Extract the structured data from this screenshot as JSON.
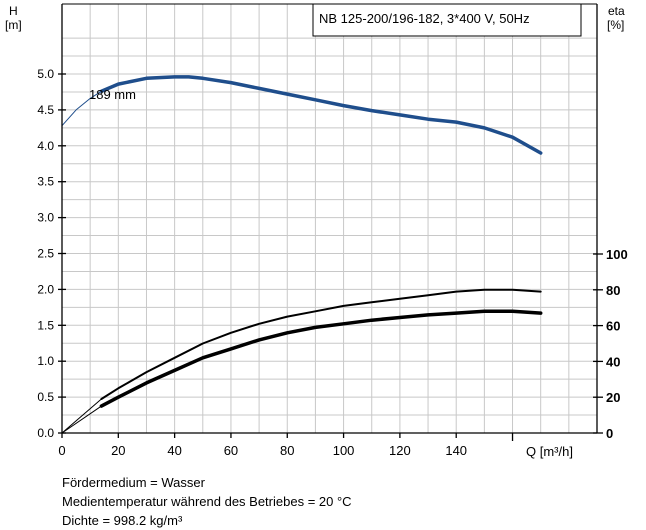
{
  "chart_data": {
    "type": "line",
    "title": "NB 125-200/196-182, 3*400 V, 50Hz",
    "xlabel": "Q [m³/h]",
    "x_ticks": [
      "0",
      "20",
      "40",
      "60",
      "80",
      "100",
      "120",
      "140"
    ],
    "xlim": [
      0,
      190
    ],
    "ylabel_left": [
      "H",
      "[m]"
    ],
    "ylim_left": [
      0,
      5.5
    ],
    "y_ticks_left": [
      "0.0",
      "0.5",
      "1.0",
      "1.5",
      "2.0",
      "2.5",
      "3.0",
      "3.5",
      "4.0",
      "4.5",
      "5.0"
    ],
    "ylabel_right": [
      "eta",
      "[%]"
    ],
    "ylim_right": [
      0,
      100
    ],
    "y_ticks_right": [
      "0",
      "20",
      "40",
      "60",
      "80",
      "100"
    ],
    "grid": true,
    "annotations": [
      {
        "text": "189 mm",
        "x": 10,
        "y": 4.7
      }
    ],
    "series": [
      {
        "axis": "left",
        "color": "#1f4e8c",
        "style": "thin",
        "x": [
          0,
          5,
          10,
          14
        ],
        "y": [
          4.28,
          4.5,
          4.66,
          4.76
        ]
      },
      {
        "axis": "left",
        "color": "#1f4e8c",
        "style": "thick",
        "x": [
          14,
          20,
          30,
          40,
          45,
          50,
          60,
          70,
          80,
          90,
          100,
          110,
          120,
          130,
          140,
          150,
          160,
          170
        ],
        "y": [
          4.76,
          4.86,
          4.94,
          4.96,
          4.96,
          4.94,
          4.88,
          4.8,
          4.72,
          4.64,
          4.56,
          4.49,
          4.43,
          4.37,
          4.33,
          4.25,
          4.12,
          3.9
        ]
      },
      {
        "axis": "right",
        "color": "#000000",
        "style": "thin",
        "x": [
          0,
          14
        ],
        "y": [
          0,
          19
        ]
      },
      {
        "axis": "right",
        "color": "#000000",
        "style": "medium",
        "x": [
          14,
          20,
          30,
          40,
          50,
          60,
          70,
          80,
          90,
          100,
          110,
          120,
          130,
          140,
          150,
          160,
          170
        ],
        "y": [
          19,
          25,
          34,
          42,
          50,
          56,
          61,
          65,
          68,
          71,
          73,
          75,
          77,
          79,
          80,
          80,
          79
        ]
      },
      {
        "axis": "right",
        "color": "#000000",
        "style": "thin",
        "x": [
          0,
          14
        ],
        "y": [
          0,
          15
        ]
      },
      {
        "axis": "right",
        "color": "#000000",
        "style": "thick",
        "x": [
          14,
          20,
          30,
          40,
          50,
          60,
          70,
          80,
          90,
          100,
          110,
          120,
          130,
          140,
          150,
          160,
          170
        ],
        "y": [
          15,
          20,
          28,
          35,
          42,
          47,
          52,
          56,
          59,
          61,
          63,
          64.5,
          66,
          67,
          68,
          68,
          67
        ]
      }
    ]
  },
  "notes": [
    "Fördermedium = Wasser",
    "Medientemperatur während des Betriebes = 20 °C",
    "Dichte = 998.2 kg/m³"
  ],
  "colors": {
    "grid": "#c8c8c8",
    "head_curve": "#1f4e8c",
    "eff_curve": "#000000"
  }
}
